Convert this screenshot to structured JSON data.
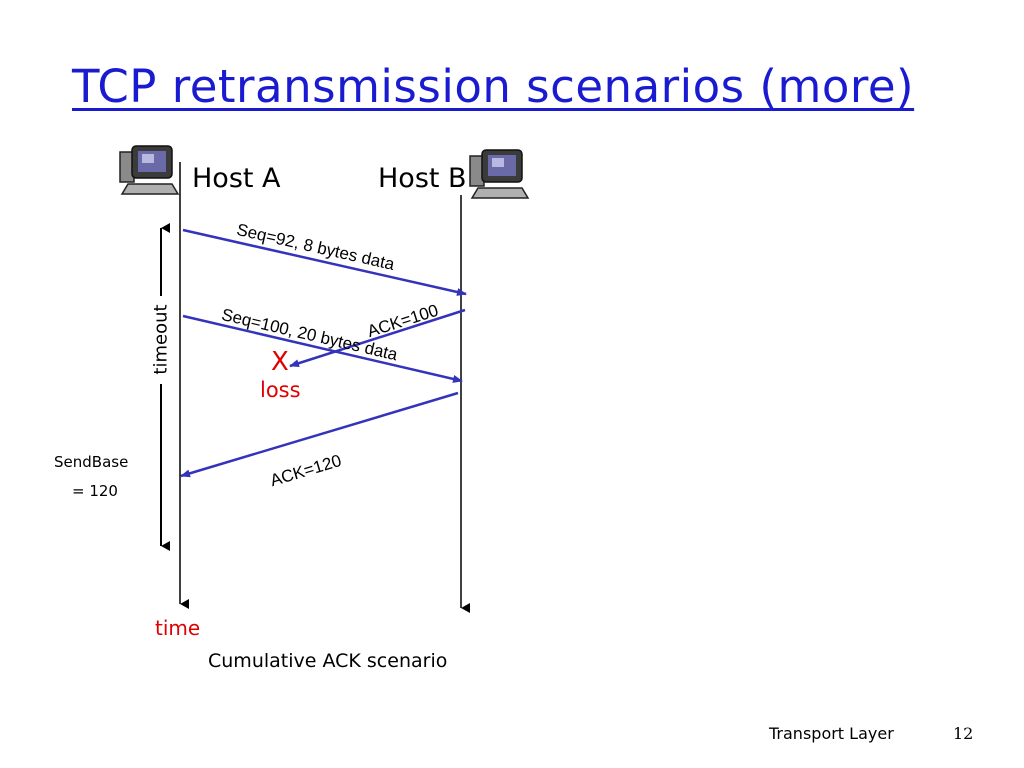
{
  "slide": {
    "title": "TCP retransmission scenarios (more)",
    "footer": "Transport Layer",
    "page_number": "12"
  },
  "diagram": {
    "hosts": [
      {
        "label": "Host A",
        "icon": "computer-icon"
      },
      {
        "label": "Host B",
        "icon": "computer-icon"
      }
    ],
    "messages": [
      {
        "label": "Seq=92, 8 bytes data",
        "from": "Host A",
        "to": "Host B"
      },
      {
        "label": "ACK=100",
        "from": "Host B",
        "to": "Host A",
        "lost": true
      },
      {
        "label": "Seq=100, 20 bytes data",
        "from": "Host A",
        "to": "Host B"
      },
      {
        "label": "ACK=120",
        "from": "Host B",
        "to": "Host A"
      }
    ],
    "loss_marker": "X",
    "loss_label": "loss",
    "timeout_label": "timeout",
    "sendbase_line1": "SendBase",
    "sendbase_line2": "= 120",
    "time_label": "time",
    "caption": "Cumulative ACK scenario"
  },
  "colors": {
    "title": "#1a1ad0",
    "arrow": "#3333bb",
    "loss": "#e00000",
    "timeline": "#000000"
  }
}
